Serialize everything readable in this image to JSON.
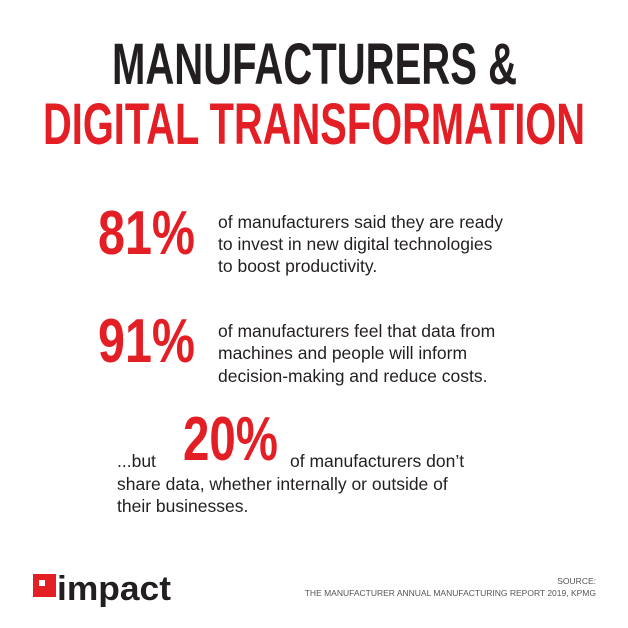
{
  "header": {
    "title_line1": "MANUFACTURERS &",
    "title_line2": "DIGITAL TRANSFORMATION"
  },
  "stats": [
    {
      "number": "81%",
      "lines": [
        "of manufacturers said they are ready",
        "to invest in new digital technologies",
        "to boost productivity."
      ]
    },
    {
      "number": "91%",
      "lines": [
        "of manufacturers feel that data from",
        "machines and people will inform",
        "decision-making and reduce costs."
      ]
    },
    {
      "prefix": "...but",
      "number": "20%",
      "lines": [
        "of manufacturers don’t",
        "share data, whether internally or outside of",
        "their businesses."
      ]
    }
  ],
  "footer": {
    "logo": "impact",
    "source_label": "SOURCE:",
    "source": "THE MANUFACTURER ANNUAL MANUFACTURING REPORT 2019, KPMG"
  }
}
